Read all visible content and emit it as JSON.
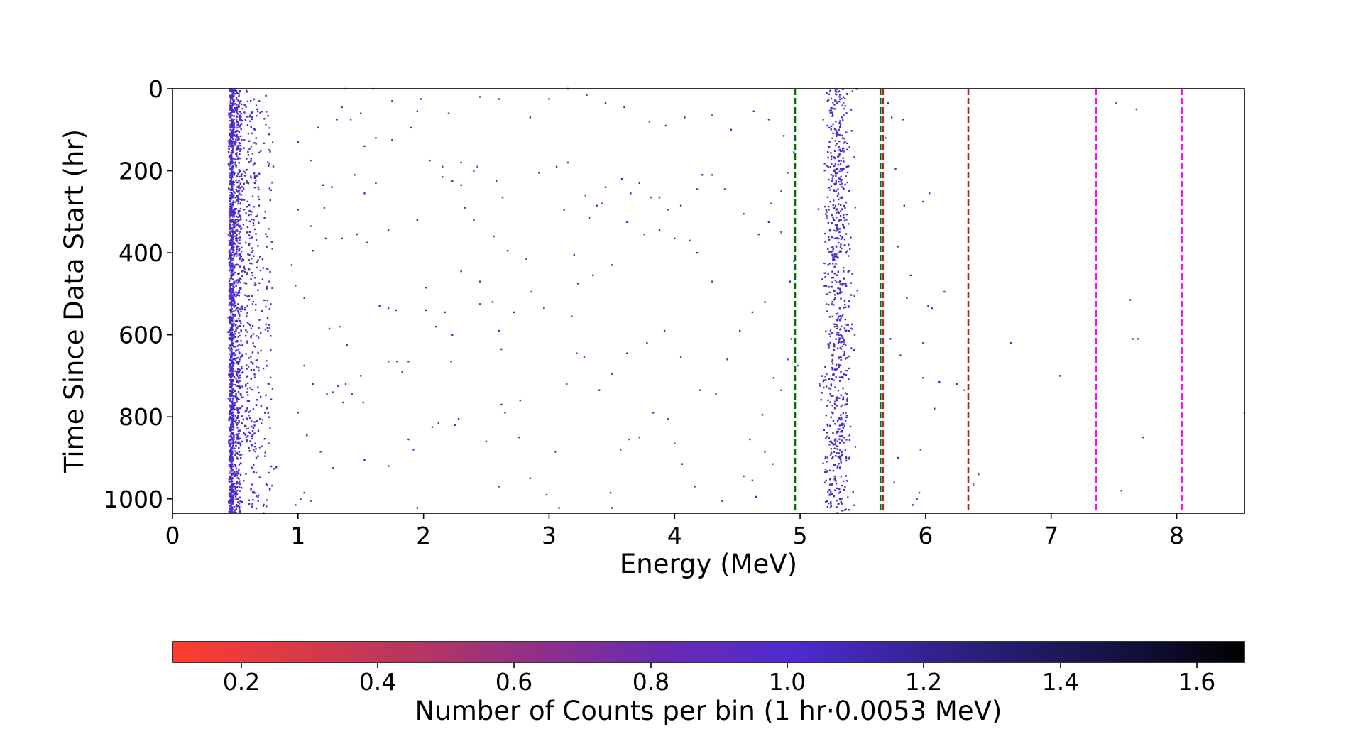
{
  "chart_data": {
    "type": "heatmap",
    "xlabel": "Energy (MeV)",
    "ylabel": "Time Since Data Start (hr)",
    "xlim": [
      0,
      8.54
    ],
    "ylim": [
      1035,
      0
    ],
    "y_inverted": true,
    "x_ticks": [
      0,
      1,
      2,
      3,
      4,
      5,
      6,
      7,
      8
    ],
    "y_ticks": [
      0,
      200,
      400,
      600,
      800,
      1000
    ],
    "grid": false,
    "marker_color": "#4b2bc8",
    "vertical_lines": [
      {
        "x": 4.96,
        "color": "#0a6b0a",
        "style": "dashed"
      },
      {
        "x": 5.64,
        "color": "#0a6b0a",
        "style": "dashed"
      },
      {
        "x": 5.66,
        "color": "#b22222",
        "style": "dashed"
      },
      {
        "x": 6.34,
        "color": "#b22222",
        "style": "dashed"
      },
      {
        "x": 7.36,
        "color": "#ff00ff",
        "style": "dashed"
      },
      {
        "x": 8.04,
        "color": "#ff00ff",
        "style": "dashed"
      }
    ],
    "bands": [
      {
        "x_center": 0.47,
        "x_width": 0.03,
        "y_range": [
          0,
          1035
        ],
        "density": 10
      },
      {
        "x_center": 0.52,
        "x_width": 0.06,
        "y_range": [
          0,
          1035
        ],
        "density": 6
      },
      {
        "x_center": 0.63,
        "x_width": 0.12,
        "y_range": [
          0,
          1035
        ],
        "density": 3
      },
      {
        "x_center": 0.76,
        "x_width": 0.08,
        "y_range": [
          0,
          1035
        ],
        "density": 0.8
      },
      {
        "x_center": 5.3,
        "x_width": 0.17,
        "y_range": [
          0,
          1035
        ],
        "density": 7
      }
    ],
    "points": [
      [
        1.0,
        130
      ],
      [
        1.1,
        175
      ],
      [
        1.2,
        235
      ],
      [
        1.27,
        240
      ],
      [
        1.22,
        365
      ],
      [
        1.35,
        365
      ],
      [
        1.55,
        375
      ],
      [
        1.72,
        345
      ],
      [
        1.47,
        355
      ],
      [
        1.53,
        255
      ],
      [
        1.62,
        230
      ],
      [
        1.62,
        120
      ],
      [
        1.53,
        140
      ],
      [
        1.42,
        75
      ],
      [
        1.31,
        75
      ],
      [
        1.35,
        45
      ],
      [
        1.16,
        95
      ],
      [
        1.21,
        290
      ],
      [
        1.45,
        210
      ],
      [
        1.0,
        295
      ],
      [
        1.1,
        335
      ],
      [
        1.12,
        395
      ],
      [
        1.05,
        510
      ],
      [
        0.95,
        430
      ],
      [
        0.98,
        480
      ],
      [
        1.25,
        585
      ],
      [
        1.33,
        580
      ],
      [
        1.39,
        625
      ],
      [
        1.05,
        675
      ],
      [
        1.12,
        720
      ],
      [
        1.28,
        740
      ],
      [
        1.32,
        725
      ],
      [
        1.38,
        720
      ],
      [
        1.5,
        700
      ],
      [
        1.72,
        665
      ],
      [
        1.79,
        665
      ],
      [
        1.88,
        665
      ],
      [
        1.83,
        690
      ],
      [
        1.65,
        530
      ],
      [
        1.72,
        535
      ],
      [
        1.78,
        540
      ],
      [
        2.02,
        540
      ],
      [
        2.1,
        580
      ],
      [
        2.23,
        600
      ],
      [
        2.22,
        665
      ],
      [
        1.95,
        320
      ],
      [
        2.15,
        215
      ],
      [
        2.23,
        225
      ],
      [
        1.98,
        25
      ],
      [
        2.05,
        175
      ],
      [
        2.15,
        190
      ],
      [
        2.3,
        180
      ],
      [
        2.4,
        200
      ],
      [
        1.75,
        125
      ],
      [
        1.9,
        95
      ],
      [
        2.02,
        485
      ],
      [
        2.45,
        470
      ],
      [
        2.55,
        520
      ],
      [
        2.28,
        805
      ],
      [
        2.25,
        820
      ],
      [
        2.07,
        825
      ],
      [
        2.12,
        815
      ],
      [
        1.88,
        855
      ],
      [
        1.92,
        880
      ],
      [
        1.72,
        920
      ],
      [
        1.53,
        905
      ],
      [
        1.28,
        925
      ],
      [
        1.1,
        1005
      ],
      [
        1.05,
        985
      ],
      [
        1.02,
        1000
      ],
      [
        0.98,
        1015
      ],
      [
        1.95,
        1022
      ],
      [
        1.52,
        765
      ],
      [
        1.36,
        765
      ],
      [
        1.43,
        745
      ],
      [
        1.23,
        745
      ],
      [
        1.07,
        845
      ],
      [
        1.18,
        885
      ],
      [
        1.0,
        790
      ],
      [
        2.3,
        445
      ],
      [
        2.17,
        545
      ],
      [
        2.43,
        190
      ],
      [
        2.3,
        235
      ],
      [
        2.58,
        225
      ],
      [
        2.63,
        265
      ],
      [
        2.45,
        525
      ],
      [
        2.6,
        590
      ],
      [
        2.62,
        635
      ],
      [
        2.62,
        770
      ],
      [
        2.65,
        790
      ],
      [
        2.77,
        760
      ],
      [
        2.76,
        850
      ],
      [
        2.5,
        860
      ],
      [
        2.6,
        970
      ],
      [
        2.85,
        950
      ],
      [
        2.98,
        990
      ],
      [
        3.08,
        1022
      ],
      [
        3.14,
        720
      ],
      [
        3.05,
        885
      ],
      [
        3.18,
        555
      ],
      [
        3.23,
        475
      ],
      [
        3.2,
        405
      ],
      [
        3.32,
        315
      ],
      [
        3.38,
        285
      ],
      [
        3.42,
        280
      ],
      [
        3.29,
        260
      ],
      [
        3.12,
        295
      ],
      [
        2.92,
        205
      ],
      [
        3.06,
        190
      ],
      [
        3.15,
        180
      ],
      [
        3.45,
        240
      ],
      [
        3.58,
        220
      ],
      [
        3.65,
        255
      ],
      [
        3.72,
        230
      ],
      [
        3.81,
        265
      ],
      [
        3.88,
        265
      ],
      [
        3.95,
        295
      ],
      [
        4.05,
        285
      ],
      [
        4.18,
        245
      ],
      [
        4.22,
        210
      ],
      [
        4.3,
        210
      ],
      [
        4.4,
        245
      ],
      [
        4.55,
        305
      ],
      [
        4.67,
        355
      ],
      [
        4.75,
        325
      ],
      [
        4.85,
        350
      ],
      [
        4.92,
        470
      ],
      [
        4.95,
        420
      ],
      [
        4.93,
        610
      ],
      [
        4.98,
        675
      ],
      [
        4.9,
        660
      ],
      [
        4.79,
        705
      ],
      [
        4.85,
        735
      ],
      [
        4.7,
        795
      ],
      [
        4.6,
        855
      ],
      [
        4.72,
        885
      ],
      [
        4.78,
        915
      ],
      [
        4.62,
        955
      ],
      [
        4.65,
        995
      ],
      [
        4.55,
        945
      ],
      [
        4.38,
        1005
      ],
      [
        4.16,
        970
      ],
      [
        4.06,
        915
      ],
      [
        4.0,
        865
      ],
      [
        3.95,
        805
      ],
      [
        3.83,
        790
      ],
      [
        3.72,
        850
      ],
      [
        3.64,
        855
      ],
      [
        3.57,
        880
      ],
      [
        3.49,
        985
      ],
      [
        3.5,
        1022
      ],
      [
        3.4,
        735
      ],
      [
        3.5,
        695
      ],
      [
        3.62,
        645
      ],
      [
        3.78,
        620
      ],
      [
        3.92,
        590
      ],
      [
        4.05,
        655
      ],
      [
        4.2,
        735
      ],
      [
        4.33,
        745
      ],
      [
        4.42,
        660
      ],
      [
        4.52,
        590
      ],
      [
        4.62,
        545
      ],
      [
        4.72,
        520
      ],
      [
        4.3,
        470
      ],
      [
        4.18,
        400
      ],
      [
        4.12,
        370
      ],
      [
        4.0,
        365
      ],
      [
        3.88,
        345
      ],
      [
        3.76,
        355
      ],
      [
        3.62,
        325
      ],
      [
        3.5,
        430
      ],
      [
        3.35,
        455
      ],
      [
        3.28,
        655
      ],
      [
        3.22,
        645
      ],
      [
        2.96,
        535
      ],
      [
        2.86,
        495
      ],
      [
        2.72,
        545
      ],
      [
        2.82,
        415
      ],
      [
        2.67,
        395
      ],
      [
        2.56,
        360
      ],
      [
        2.4,
        320
      ],
      [
        2.33,
        290
      ],
      [
        4.77,
        280
      ],
      [
        4.85,
        250
      ],
      [
        4.9,
        205
      ],
      [
        4.95,
        155
      ],
      [
        4.87,
        115
      ],
      [
        4.75,
        75
      ],
      [
        4.63,
        55
      ],
      [
        4.45,
        100
      ],
      [
        4.3,
        65
      ],
      [
        4.08,
        70
      ],
      [
        3.93,
        90
      ],
      [
        3.8,
        80
      ],
      [
        3.6,
        45
      ],
      [
        3.45,
        35
      ],
      [
        3.3,
        15
      ],
      [
        3.15,
        0
      ],
      [
        3.0,
        25
      ],
      [
        2.85,
        70
      ],
      [
        2.6,
        25
      ],
      [
        2.45,
        20
      ],
      [
        2.2,
        60
      ],
      [
        1.95,
        55
      ],
      [
        1.75,
        30
      ],
      [
        1.6,
        0
      ],
      [
        1.38,
        0
      ],
      [
        1.5,
        60
      ],
      [
        5.7,
        35
      ],
      [
        5.73,
        70
      ],
      [
        5.82,
        75
      ],
      [
        5.98,
        275
      ],
      [
        6.03,
        255
      ],
      [
        6.15,
        495
      ],
      [
        6.05,
        535
      ],
      [
        5.98,
        620
      ],
      [
        5.98,
        705
      ],
      [
        6.11,
        715
      ],
      [
        6.25,
        720
      ],
      [
        6.31,
        735
      ],
      [
        6.07,
        780
      ],
      [
        5.96,
        880
      ],
      [
        5.95,
        985
      ],
      [
        5.93,
        1000
      ],
      [
        5.9,
        1015
      ],
      [
        6.38,
        965
      ],
      [
        6.42,
        940
      ],
      [
        6.68,
        620
      ],
      [
        7.07,
        700
      ],
      [
        7.52,
        35
      ],
      [
        7.56,
        980
      ],
      [
        7.63,
        515
      ],
      [
        7.65,
        610
      ],
      [
        7.69,
        610
      ],
      [
        7.73,
        850
      ],
      [
        7.68,
        50
      ],
      [
        8.54,
        790
      ],
      [
        6.02,
        530
      ],
      [
        5.85,
        510
      ],
      [
        5.88,
        455
      ],
      [
        5.78,
        385
      ],
      [
        5.83,
        285
      ],
      [
        5.76,
        195
      ],
      [
        5.68,
        120
      ],
      [
        5.72,
        610
      ],
      [
        5.8,
        650
      ],
      [
        5.78,
        900
      ],
      [
        5.75,
        960
      ]
    ]
  }
}
